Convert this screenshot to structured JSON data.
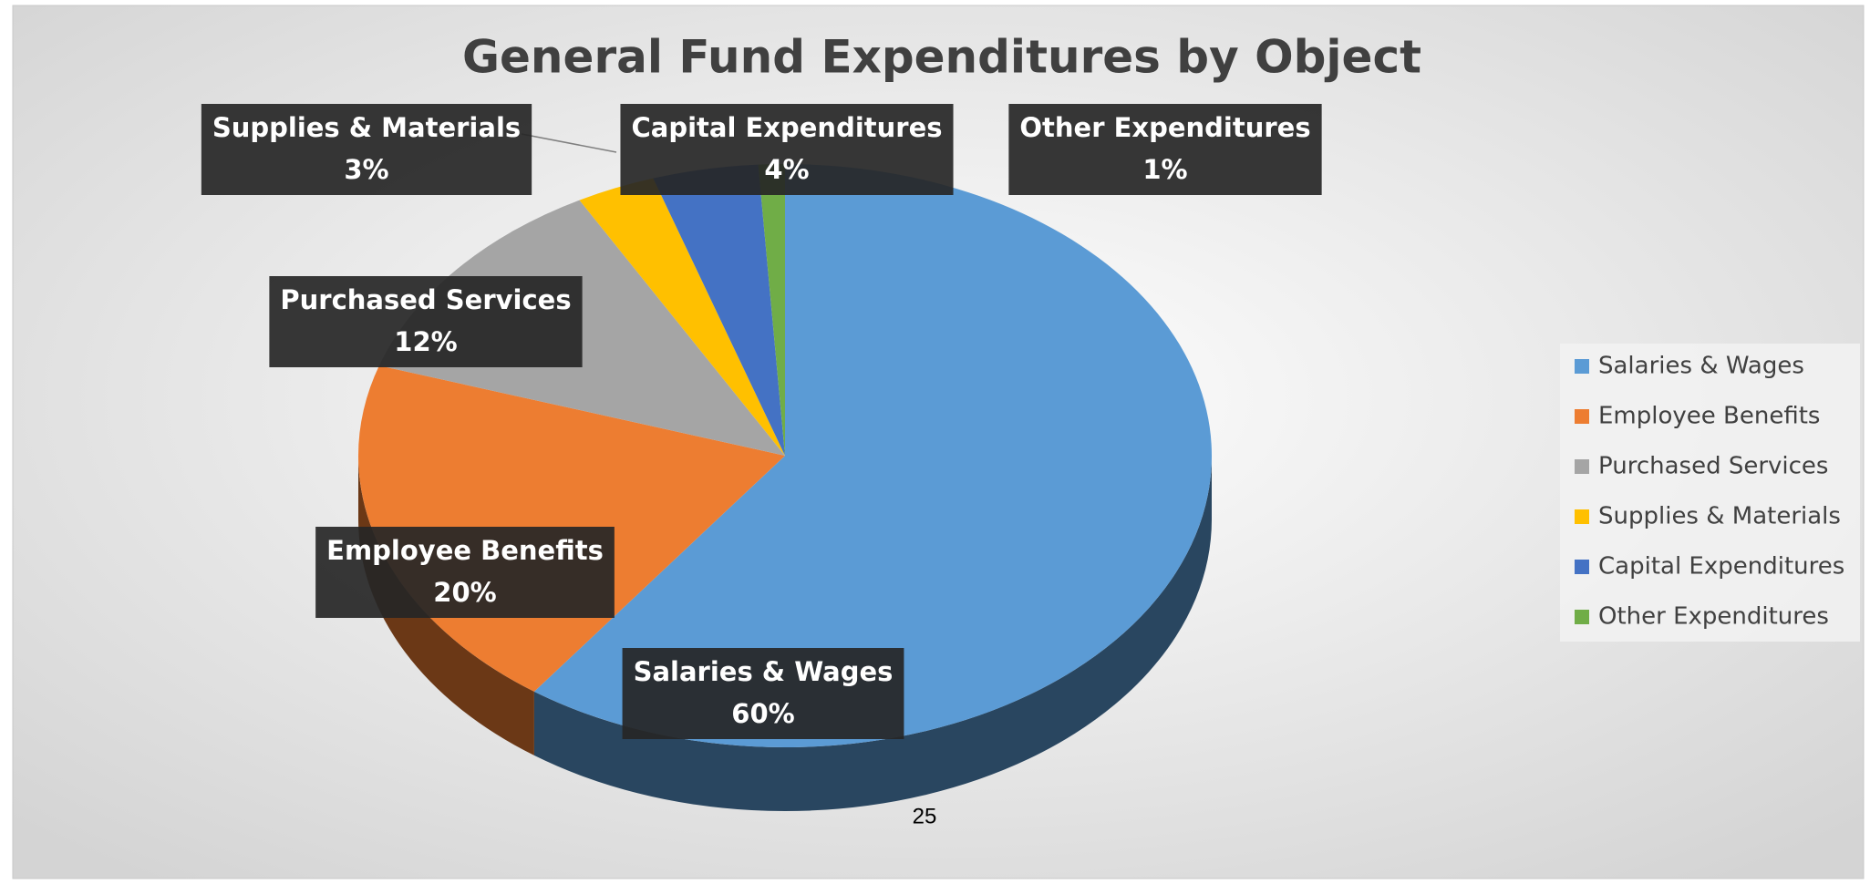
{
  "chart_data": {
    "type": "pie",
    "title": "General Fund Expenditures by Object",
    "categories": [
      "Salaries & Wages",
      "Employee Benefits",
      "Purchased Services",
      "Supplies & Materials",
      "Capital Expenditures",
      "Other Expenditures"
    ],
    "values": [
      60,
      20,
      12,
      3,
      4,
      1
    ],
    "value_labels": [
      "60%",
      "20%",
      "12%",
      "3%",
      "4%",
      "1%"
    ],
    "colors": [
      "#5b9bd5",
      "#ed7d31",
      "#a5a5a5",
      "#ffc000",
      "#4472c4",
      "#70ad47"
    ],
    "legend": "right"
  },
  "page_number": "25"
}
